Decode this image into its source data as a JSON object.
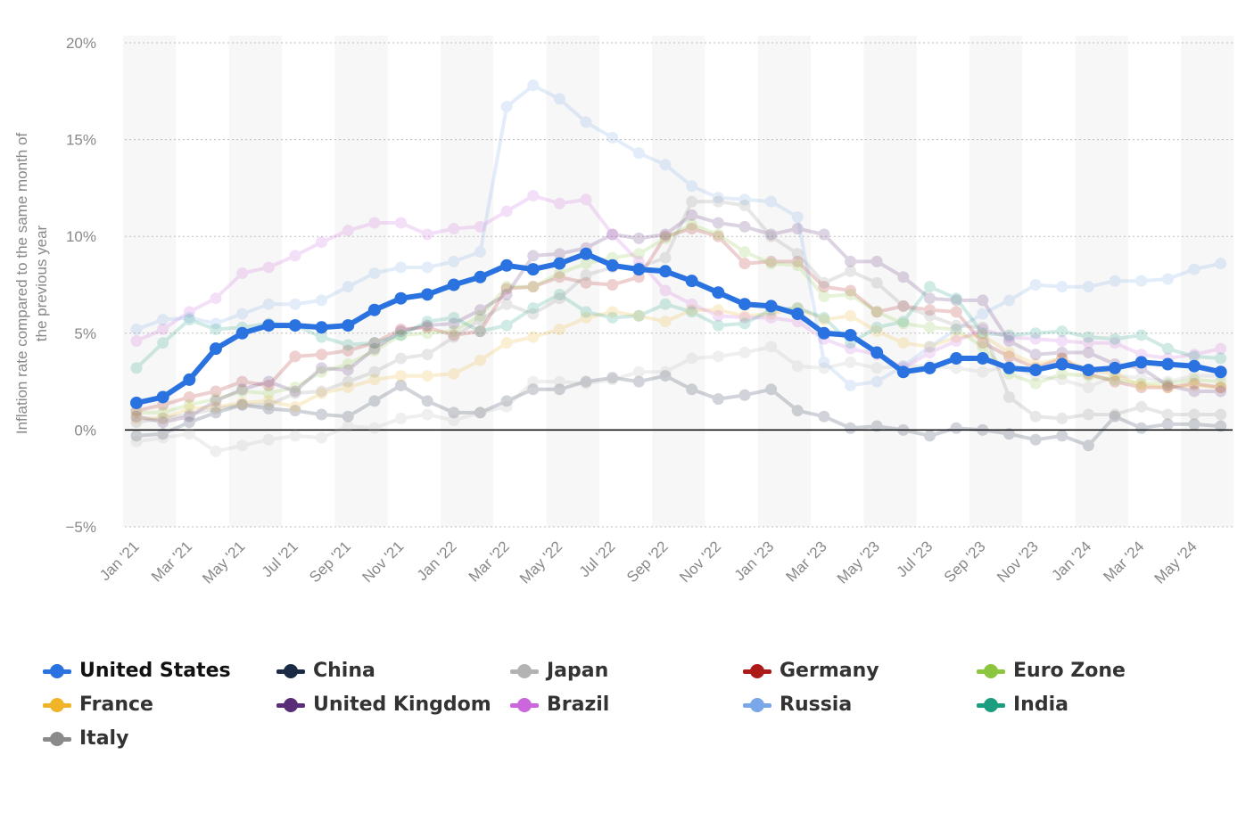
{
  "chart_data": {
    "type": "line",
    "title": "",
    "ylabel": "Inflation rate compared to the same month of the previous year",
    "xlabel": "",
    "ylim": [
      -5,
      20
    ],
    "y_ticks": [
      20,
      15,
      10,
      5,
      0,
      -5
    ],
    "y_tick_labels": [
      "20%",
      "15%",
      "10%",
      "5%",
      "0%",
      "−5%"
    ],
    "x_tick_labels": [
      "Jan '21",
      "Mar '21",
      "May '21",
      "Jul '21",
      "Sep '21",
      "Nov '21",
      "Jan '22",
      "Mar '22",
      "May '22",
      "Jul '22",
      "Sep '22",
      "Nov '22",
      "Jan '23",
      "Mar '23",
      "May '23",
      "Jul '23",
      "Sep '23",
      "Nov '23",
      "Jan '24",
      "Mar '24",
      "May '24"
    ],
    "categories": [
      "Jan '21",
      "Feb '21",
      "Mar '21",
      "Apr '21",
      "May '21",
      "Jun '21",
      "Jul '21",
      "Aug '21",
      "Sep '21",
      "Oct '21",
      "Nov '21",
      "Dec '21",
      "Jan '22",
      "Feb '22",
      "Mar '22",
      "Apr '22",
      "May '22",
      "Jun '22",
      "Jul '22",
      "Aug '22",
      "Sep '22",
      "Oct '22",
      "Nov '22",
      "Dec '22",
      "Jan '23",
      "Feb '23",
      "Mar '23",
      "Apr '23",
      "May '23",
      "Jun '23",
      "Jul '23",
      "Aug '23",
      "Sep '23",
      "Oct '23",
      "Nov '23",
      "Dec '23",
      "Jan '24",
      "Feb '24",
      "Mar '24",
      "Apr '24",
      "May '24",
      "Jun '24"
    ],
    "highlighted_series": "United States",
    "series": [
      {
        "name": "China",
        "color": "#1b2b45",
        "values": [
          -0.3,
          -0.2,
          0.4,
          0.9,
          1.3,
          1.1,
          1.0,
          0.8,
          0.7,
          1.5,
          2.3,
          1.5,
          0.9,
          0.9,
          1.5,
          2.1,
          2.1,
          2.5,
          2.7,
          2.5,
          2.8,
          2.1,
          1.6,
          1.8,
          2.1,
          1.0,
          0.7,
          0.1,
          0.2,
          0.0,
          -0.3,
          0.1,
          0.0,
          -0.2,
          -0.5,
          -0.3,
          -0.8,
          0.7,
          0.1,
          0.3,
          0.3,
          0.2
        ]
      },
      {
        "name": "Japan",
        "color": "#b3b3b3",
        "values": [
          -0.6,
          -0.4,
          -0.2,
          -1.1,
          -0.8,
          -0.5,
          -0.3,
          -0.4,
          0.2,
          0.1,
          0.6,
          0.8,
          0.5,
          0.9,
          1.2,
          2.5,
          2.5,
          2.4,
          2.6,
          3.0,
          3.0,
          3.7,
          3.8,
          4.0,
          4.3,
          3.3,
          3.2,
          3.5,
          3.2,
          3.3,
          3.3,
          3.2,
          3.0,
          3.3,
          2.8,
          2.6,
          2.2,
          2.8,
          2.7,
          2.5,
          2.8,
          2.8
        ]
      },
      {
        "name": "Germany",
        "color": "#ad1a1a",
        "values": [
          1.0,
          1.3,
          1.7,
          2.0,
          2.5,
          2.3,
          3.8,
          3.9,
          4.1,
          4.5,
          5.2,
          5.3,
          4.9,
          5.1,
          7.3,
          7.4,
          7.9,
          7.6,
          7.5,
          7.9,
          10.0,
          10.4,
          10.0,
          8.6,
          8.7,
          8.7,
          7.4,
          7.2,
          6.1,
          6.4,
          6.2,
          6.1,
          4.5,
          3.8,
          3.2,
          3.7,
          2.9,
          2.5,
          2.2,
          2.2,
          2.4,
          2.2
        ]
      },
      {
        "name": "Euro Zone",
        "color": "#8cc63f",
        "values": [
          0.9,
          0.9,
          1.3,
          1.6,
          2.0,
          1.9,
          2.2,
          3.0,
          3.4,
          4.1,
          4.9,
          5.0,
          5.1,
          5.9,
          7.4,
          7.4,
          8.1,
          8.6,
          8.9,
          9.1,
          9.9,
          10.6,
          10.1,
          9.2,
          8.6,
          8.5,
          6.9,
          7.0,
          6.1,
          5.5,
          5.3,
          5.2,
          4.3,
          2.9,
          2.4,
          2.9,
          2.8,
          2.6,
          2.4,
          2.4,
          2.6,
          2.5
        ]
      },
      {
        "name": "France",
        "color": "#f0b429",
        "values": [
          0.6,
          0.6,
          1.1,
          1.2,
          1.4,
          1.5,
          1.2,
          1.9,
          2.2,
          2.6,
          2.8,
          2.8,
          2.9,
          3.6,
          4.5,
          4.8,
          5.2,
          5.8,
          6.1,
          5.9,
          5.6,
          6.2,
          6.2,
          5.9,
          6.0,
          6.3,
          5.7,
          5.9,
          5.1,
          4.5,
          4.3,
          4.8,
          4.9,
          4.0,
          3.4,
          3.7,
          3.1,
          2.9,
          2.3,
          2.2,
          2.3,
          2.2
        ]
      },
      {
        "name": "United Kingdom",
        "color": "#5a2d78",
        "values": [
          0.7,
          0.4,
          0.7,
          1.5,
          2.1,
          2.5,
          2.0,
          3.2,
          3.1,
          4.2,
          5.1,
          5.4,
          5.5,
          6.2,
          7.0,
          9.0,
          9.1,
          9.4,
          10.1,
          9.9,
          10.1,
          11.1,
          10.7,
          10.5,
          10.1,
          10.4,
          10.1,
          8.7,
          8.7,
          7.9,
          6.8,
          6.7,
          6.7,
          4.6,
          3.9,
          4.0,
          4.0,
          3.4,
          3.2,
          2.3,
          2.0,
          2.0
        ]
      },
      {
        "name": "Brazil",
        "color": "#cc66dd",
        "values": [
          4.6,
          5.2,
          6.1,
          6.8,
          8.1,
          8.4,
          9.0,
          9.7,
          10.3,
          10.7,
          10.7,
          10.1,
          10.4,
          10.5,
          11.3,
          12.1,
          11.7,
          11.9,
          10.1,
          8.7,
          7.2,
          6.5,
          5.9,
          5.8,
          5.8,
          5.6,
          4.7,
          4.2,
          3.9,
          3.2,
          4.0,
          4.6,
          5.2,
          4.8,
          4.7,
          4.6,
          4.5,
          4.5,
          3.9,
          3.7,
          3.9,
          4.2
        ]
      },
      {
        "name": "Russia",
        "color": "#7aa7e8",
        "values": [
          5.2,
          5.7,
          5.8,
          5.5,
          6.0,
          6.5,
          6.5,
          6.7,
          7.4,
          8.1,
          8.4,
          8.4,
          8.7,
          9.2,
          16.7,
          17.8,
          17.1,
          15.9,
          15.1,
          14.3,
          13.7,
          12.6,
          12.0,
          11.9,
          11.8,
          11.0,
          3.5,
          2.3,
          2.5,
          3.3,
          4.3,
          5.2,
          6.0,
          6.7,
          7.5,
          7.4,
          7.4,
          7.7,
          7.7,
          7.8,
          8.3,
          8.6
        ]
      },
      {
        "name": "India",
        "color": "#1a9e7f",
        "values": [
          3.2,
          4.5,
          5.7,
          5.2,
          5.3,
          5.5,
          5.4,
          4.8,
          4.4,
          4.5,
          4.9,
          5.6,
          5.8,
          5.1,
          5.4,
          6.3,
          7.0,
          6.1,
          5.8,
          5.9,
          6.5,
          6.1,
          5.4,
          5.5,
          6.2,
          6.3,
          5.8,
          4.5,
          5.3,
          5.6,
          7.4,
          6.8,
          5.0,
          4.9,
          5.0,
          5.1,
          4.8,
          4.7,
          4.9,
          4.2,
          3.8,
          3.7
        ]
      },
      {
        "name": "Italy",
        "color": "#8a8a8a",
        "values": [
          0.4,
          0.6,
          0.8,
          1.1,
          1.3,
          1.3,
          1.9,
          2.0,
          2.5,
          3.0,
          3.7,
          3.9,
          4.8,
          5.7,
          6.5,
          6.0,
          6.8,
          8.0,
          8.4,
          8.4,
          8.9,
          11.8,
          11.8,
          11.6,
          10.0,
          9.1,
          7.6,
          8.2,
          7.6,
          6.4,
          5.9,
          5.4,
          5.3,
          1.7,
          0.7,
          0.6,
          0.8,
          0.8,
          1.2,
          0.8,
          0.8,
          0.8
        ]
      },
      {
        "name": "United States",
        "color": "#2a72e0",
        "values": [
          1.4,
          1.7,
          2.6,
          4.2,
          5.0,
          5.4,
          5.4,
          5.3,
          5.4,
          6.2,
          6.8,
          7.0,
          7.5,
          7.9,
          8.5,
          8.3,
          8.6,
          9.1,
          8.5,
          8.3,
          8.2,
          7.7,
          7.1,
          6.5,
          6.4,
          6.0,
          5.0,
          4.9,
          4.0,
          3.0,
          3.2,
          3.7,
          3.7,
          3.2,
          3.1,
          3.4,
          3.1,
          3.2,
          3.5,
          3.4,
          3.3,
          3.0
        ]
      }
    ]
  },
  "legend": [
    {
      "label": "United States",
      "color": "#2a72e0"
    },
    {
      "label": "China",
      "color": "#1b2b45"
    },
    {
      "label": "Japan",
      "color": "#b3b3b3"
    },
    {
      "label": "Germany",
      "color": "#ad1a1a"
    },
    {
      "label": "Euro Zone",
      "color": "#8cc63f"
    },
    {
      "label": "France",
      "color": "#f0b429"
    },
    {
      "label": "United Kingdom",
      "color": "#5a2d78"
    },
    {
      "label": "Brazil",
      "color": "#cc66dd"
    },
    {
      "label": "Russia",
      "color": "#7aa7e8"
    },
    {
      "label": "India",
      "color": "#1a9e7f"
    },
    {
      "label": "Italy",
      "color": "#8a8a8a"
    }
  ]
}
